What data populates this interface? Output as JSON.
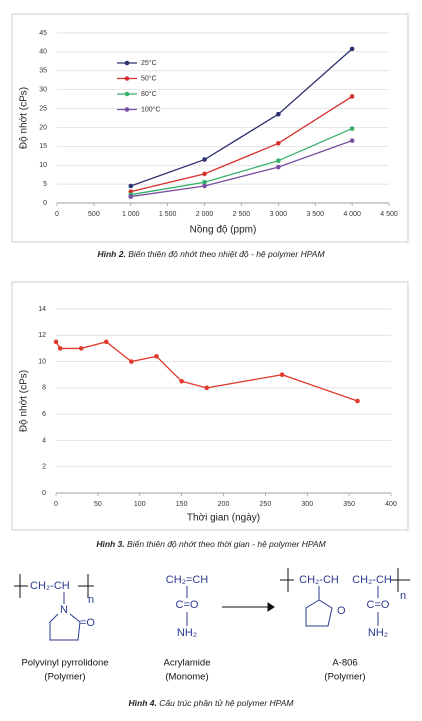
{
  "chart_data": [
    {
      "type": "line",
      "title": null,
      "xlabel": "Nồng độ (ppm)",
      "ylabel": "Độ nhớt (cPs)",
      "x": [
        1000,
        2000,
        3000,
        4000
      ],
      "series": [
        {
          "name": "25°C",
          "color": "#2e3170",
          "values": [
            4.5,
            11.5,
            23.5,
            40.8
          ]
        },
        {
          "name": "50°C",
          "color": "#d8302c",
          "values": [
            3,
            7.7,
            15.8,
            28.2
          ]
        },
        {
          "name": "80°C",
          "color": "#35b06a",
          "values": [
            2.2,
            5.5,
            11.2,
            19.7
          ]
        },
        {
          "name": "100°C",
          "color": "#7a4fa3",
          "values": [
            1.7,
            4.5,
            9.5,
            16.5
          ]
        }
      ],
      "xlim": [
        0,
        4500
      ],
      "xticks": [
        0,
        500,
        {
          "value": 1000,
          "label": "1 000"
        },
        {
          "value": 1500,
          "label": "1 500"
        },
        {
          "value": 2000,
          "label": "2 000"
        },
        {
          "value": 2500,
          "label": "2 500"
        },
        {
          "value": 3000,
          "label": "3 000"
        },
        {
          "value": 3500,
          "label": "3 500"
        },
        {
          "value": 4000,
          "label": "4 000"
        },
        {
          "value": 4500,
          "label": "4 500"
        }
      ],
      "ylim": [
        0,
        45
      ],
      "yticks": [
        0,
        5,
        10,
        15,
        20,
        25,
        30,
        35,
        40,
        45
      ],
      "grid": true,
      "legend": "upper left",
      "caption_label": "Hình 2.",
      "caption": "Biến thiên độ nhớt theo nhiệt độ - hệ polymer HPAM"
    },
    {
      "type": "line",
      "xlabel": "Thời gian (ngày)",
      "ylabel": "Độ nhớt (cPs)",
      "x": [
        0,
        5,
        30,
        60,
        90,
        120,
        150,
        180,
        270,
        360
      ],
      "values": [
        11.5,
        11,
        11,
        11.5,
        10,
        10.4,
        8.5,
        8,
        9,
        7
      ],
      "color": "#e03a2c",
      "xlim": [
        0,
        400
      ],
      "xticks": [
        0,
        50,
        100,
        150,
        200,
        250,
        300,
        350,
        400
      ],
      "ylim": [
        0,
        14
      ],
      "yticks": [
        0,
        2,
        4,
        6,
        8,
        10,
        12,
        14
      ],
      "grid": true,
      "caption_label": "Hình 3.",
      "caption": "Biến thiên độ nhớt theo thời gian - hệ polymer HPAM"
    }
  ],
  "figure4": {
    "pvp": {
      "chain": "CH₂-CH",
      "n": "n",
      "n_atom": "N",
      "oxygen": "=O",
      "name": "Polyvinyl pyrrolidone",
      "kind": "(Polymer)"
    },
    "acrylamide": {
      "chain": "CH₂=CH",
      "carbonyl": "C=O",
      "amine": "NH₂",
      "name": "Acrylamide",
      "kind": "(Monome)"
    },
    "a806": {
      "chain1": "CH₂-CH",
      "chain2": "CH₂-CH",
      "n": "n",
      "oxygen": "O",
      "carbonyl": "C=O",
      "amine": "NH₂",
      "name": "A-806",
      "kind": "(Polymer)"
    },
    "caption_label": "Hình 4.",
    "caption": "Cấu trúc phân tử hệ polymer HPAM"
  }
}
